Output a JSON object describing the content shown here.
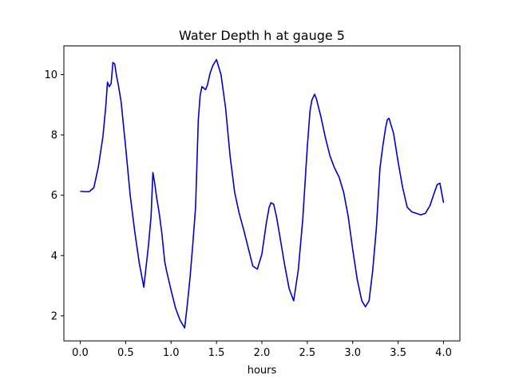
{
  "chart_data": {
    "type": "line",
    "title": "Water Depth h at gauge 5",
    "xlabel": "hours",
    "ylabel": "",
    "xlim": [
      -0.18,
      4.18
    ],
    "ylim": [
      1.17,
      10.95
    ],
    "xticks": [
      0.0,
      0.5,
      1.0,
      1.5,
      2.0,
      2.5,
      3.0,
      3.5,
      4.0
    ],
    "xtick_labels": [
      "0.0",
      "0.5",
      "1.0",
      "1.5",
      "2.0",
      "2.5",
      "3.0",
      "3.5",
      "4.0"
    ],
    "yticks": [
      2,
      4,
      6,
      8,
      10
    ],
    "ytick_labels": [
      "2",
      "4",
      "6",
      "8",
      "10"
    ],
    "grid": false,
    "series": [
      {
        "color": "#0000cc",
        "x": [
          0.0,
          0.05,
          0.1,
          0.15,
          0.2,
          0.25,
          0.28,
          0.3,
          0.32,
          0.34,
          0.36,
          0.38,
          0.4,
          0.42,
          0.45,
          0.5,
          0.55,
          0.6,
          0.65,
          0.7,
          0.75,
          0.78,
          0.8,
          0.82,
          0.84,
          0.87,
          0.9,
          0.93,
          0.95,
          1.0,
          1.05,
          1.1,
          1.15,
          1.18,
          1.21,
          1.24,
          1.27,
          1.3,
          1.32,
          1.34,
          1.36,
          1.38,
          1.4,
          1.43,
          1.46,
          1.5,
          1.55,
          1.6,
          1.65,
          1.7,
          1.75,
          1.8,
          1.85,
          1.9,
          1.95,
          2.0,
          2.05,
          2.08,
          2.1,
          2.13,
          2.16,
          2.2,
          2.25,
          2.3,
          2.35,
          2.4,
          2.45,
          2.5,
          2.53,
          2.55,
          2.58,
          2.6,
          2.65,
          2.7,
          2.75,
          2.8,
          2.85,
          2.9,
          2.95,
          3.0,
          3.05,
          3.1,
          3.14,
          3.18,
          3.22,
          3.26,
          3.3,
          3.33,
          3.36,
          3.38,
          3.4,
          3.45,
          3.5,
          3.55,
          3.6,
          3.65,
          3.7,
          3.75,
          3.8,
          3.85,
          3.9,
          3.93,
          3.96,
          4.0
        ],
        "values": [
          6.13,
          6.12,
          6.12,
          6.25,
          6.95,
          7.95,
          8.9,
          9.75,
          9.6,
          9.7,
          10.4,
          10.35,
          9.95,
          9.65,
          9.1,
          7.6,
          6.0,
          4.8,
          3.75,
          2.95,
          4.3,
          5.3,
          6.75,
          6.4,
          5.95,
          5.4,
          4.7,
          3.8,
          3.5,
          2.85,
          2.25,
          1.85,
          1.6,
          2.4,
          3.3,
          4.4,
          5.6,
          8.5,
          9.3,
          9.6,
          9.55,
          9.5,
          9.65,
          10.05,
          10.3,
          10.5,
          10.0,
          8.9,
          7.3,
          6.1,
          5.4,
          4.85,
          4.25,
          3.65,
          3.55,
          4.05,
          5.1,
          5.6,
          5.75,
          5.7,
          5.3,
          4.6,
          3.7,
          2.9,
          2.5,
          3.5,
          5.2,
          7.6,
          8.8,
          9.15,
          9.35,
          9.2,
          8.6,
          7.9,
          7.3,
          6.9,
          6.6,
          6.1,
          5.3,
          4.2,
          3.2,
          2.5,
          2.3,
          2.5,
          3.5,
          4.9,
          6.9,
          7.6,
          8.2,
          8.5,
          8.55,
          8.05,
          7.1,
          6.25,
          5.6,
          5.45,
          5.4,
          5.35,
          5.4,
          5.65,
          6.1,
          6.35,
          6.4,
          5.75
        ]
      }
    ]
  }
}
